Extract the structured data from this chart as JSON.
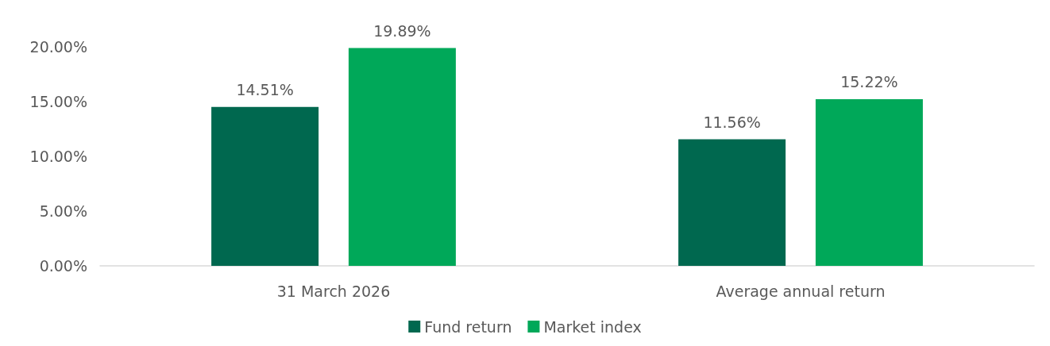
{
  "chart_data": {
    "type": "bar",
    "categories": [
      "31 March 2026",
      "Average annual return"
    ],
    "series": [
      {
        "name": "Fund return",
        "color": "#00684f",
        "values": [
          14.51,
          11.56
        ],
        "value_labels": [
          "14.51%",
          "11.56%"
        ]
      },
      {
        "name": "Market index",
        "color": "#00a859",
        "values": [
          19.89,
          15.22
        ],
        "value_labels": [
          "19.89%",
          "15.22%"
        ]
      }
    ],
    "ylim": [
      0,
      20
    ],
    "yticks": [
      {
        "value": 0,
        "label": "0.00%"
      },
      {
        "value": 5,
        "label": "5.00%"
      },
      {
        "value": 10,
        "label": "10.00%"
      },
      {
        "value": 15,
        "label": "15.00%"
      },
      {
        "value": 20,
        "label": "20.00%"
      }
    ],
    "grid": false,
    "legend": "bottom"
  }
}
